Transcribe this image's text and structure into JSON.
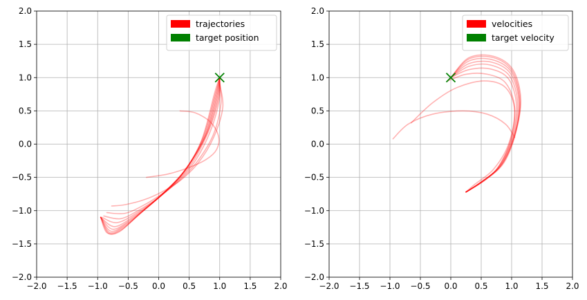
{
  "chart_data": [
    {
      "type": "line",
      "title": "",
      "xlabel": "",
      "ylabel": "",
      "xlim": [
        -2,
        2
      ],
      "ylim": [
        -2,
        2
      ],
      "xticks": [
        "−2.0",
        "−1.5",
        "−1.0",
        "−0.5",
        "0.0",
        "0.5",
        "1.0",
        "1.5",
        "2.0"
      ],
      "yticks": [
        "−2.0",
        "−1.5",
        "−1.0",
        "−0.5",
        "0.0",
        "0.5",
        "1.0",
        "1.5",
        "2.0"
      ],
      "grid": true,
      "legend_position": "top-right",
      "legend": [
        {
          "label": "trajectories",
          "color": "#ff0000"
        },
        {
          "label": "target position",
          "color": "#008000"
        }
      ],
      "series": [
        {
          "points": [
            [
              0.35,
              0.5
            ],
            [
              0.6,
              0.47
            ],
            [
              0.85,
              0.33
            ],
            [
              0.98,
              0.12
            ],
            [
              0.95,
              -0.08
            ],
            [
              0.78,
              -0.23
            ],
            [
              0.5,
              -0.35
            ],
            [
              0.15,
              -0.45
            ],
            [
              -0.2,
              -0.5
            ]
          ]
        },
        {
          "points": [
            [
              -0.77,
              -0.93
            ],
            [
              -0.55,
              -0.91
            ],
            [
              -0.25,
              -0.84
            ],
            [
              0.05,
              -0.72
            ],
            [
              0.35,
              -0.55
            ],
            [
              0.65,
              -0.28
            ],
            [
              0.9,
              0.1
            ],
            [
              1.05,
              0.55
            ],
            [
              1.0,
              0.9
            ]
          ]
        },
        {
          "points": [
            [
              -0.85,
              -1.03
            ],
            [
              -0.55,
              -1.04
            ],
            [
              -0.25,
              -0.92
            ],
            [
              0.05,
              -0.75
            ],
            [
              0.35,
              -0.54
            ],
            [
              0.65,
              -0.24
            ],
            [
              0.9,
              0.15
            ],
            [
              1.02,
              0.6
            ],
            [
              1.0,
              0.95
            ]
          ]
        },
        {
          "points": [
            [
              -0.9,
              -1.08
            ],
            [
              -0.62,
              -1.12
            ],
            [
              -0.3,
              -0.98
            ],
            [
              0.0,
              -0.8
            ],
            [
              0.3,
              -0.57
            ],
            [
              0.6,
              -0.25
            ],
            [
              0.85,
              0.2
            ],
            [
              0.99,
              0.65
            ],
            [
              1.0,
              0.98
            ]
          ]
        },
        {
          "points": [
            [
              -0.93,
              -1.1
            ],
            [
              -0.68,
              -1.18
            ],
            [
              -0.35,
              -1.03
            ],
            [
              -0.05,
              -0.84
            ],
            [
              0.25,
              -0.6
            ],
            [
              0.55,
              -0.28
            ],
            [
              0.82,
              0.2
            ],
            [
              0.98,
              0.68
            ],
            [
              1.0,
              1.0
            ]
          ]
        },
        {
          "points": [
            [
              -0.95,
              -1.1
            ],
            [
              -0.72,
              -1.24
            ],
            [
              -0.4,
              -1.08
            ],
            [
              -0.1,
              -0.88
            ],
            [
              0.2,
              -0.64
            ],
            [
              0.5,
              -0.31
            ],
            [
              0.8,
              0.18
            ],
            [
              0.97,
              0.7
            ],
            [
              1.0,
              1.0
            ]
          ]
        },
        {
          "points": [
            [
              -0.95,
              -1.1
            ],
            [
              -0.75,
              -1.28
            ],
            [
              -0.45,
              -1.13
            ],
            [
              -0.15,
              -0.92
            ],
            [
              0.15,
              -0.68
            ],
            [
              0.48,
              -0.34
            ],
            [
              0.78,
              0.15
            ],
            [
              0.96,
              0.72
            ],
            [
              1.0,
              1.0
            ]
          ]
        },
        {
          "points": [
            [
              -0.95,
              -1.1
            ],
            [
              -0.78,
              -1.31
            ],
            [
              -0.5,
              -1.18
            ],
            [
              -0.2,
              -0.96
            ],
            [
              0.1,
              -0.72
            ],
            [
              0.45,
              -0.37
            ],
            [
              0.76,
              0.12
            ],
            [
              0.95,
              0.73
            ],
            [
              1.0,
              1.0
            ]
          ]
        },
        {
          "points": [
            [
              -0.95,
              -1.1
            ],
            [
              -0.8,
              -1.33
            ],
            [
              -0.55,
              -1.23
            ],
            [
              -0.25,
              -1.0
            ],
            [
              0.05,
              -0.76
            ],
            [
              0.42,
              -0.4
            ],
            [
              0.74,
              0.1
            ],
            [
              0.94,
              0.75
            ],
            [
              1.0,
              1.0
            ]
          ]
        },
        {
          "points": [
            [
              -0.95,
              -1.1
            ],
            [
              -0.82,
              -1.34
            ],
            [
              -0.6,
              -1.28
            ],
            [
              -0.3,
              -1.04
            ],
            [
              0.0,
              -0.8
            ],
            [
              0.4,
              -0.43
            ],
            [
              0.72,
              0.08
            ],
            [
              0.93,
              0.76
            ],
            [
              1.0,
              1.0
            ]
          ]
        },
        {
          "points": [
            [
              -0.95,
              -1.1
            ],
            [
              -0.85,
              -1.33
            ],
            [
              -0.65,
              -1.32
            ],
            [
              -0.35,
              -1.08
            ],
            [
              -0.05,
              -0.84
            ],
            [
              0.38,
              -0.46
            ],
            [
              0.7,
              0.05
            ],
            [
              0.92,
              0.78
            ],
            [
              1.0,
              1.0
            ]
          ]
        }
      ],
      "target": {
        "x": 1.0,
        "y": 1.0,
        "marker": "x",
        "color": "#008000"
      }
    },
    {
      "type": "line",
      "title": "",
      "xlabel": "",
      "ylabel": "",
      "xlim": [
        -2,
        2
      ],
      "ylim": [
        -2,
        2
      ],
      "xticks": [
        "−2.0",
        "−1.5",
        "−1.0",
        "−0.5",
        "0.0",
        "0.5",
        "1.0",
        "1.5",
        "2.0"
      ],
      "yticks": [
        "−2.0",
        "−1.5",
        "−1.0",
        "−0.5",
        "0.0",
        "0.5",
        "1.0",
        "1.5",
        "2.0"
      ],
      "grid": true,
      "legend_position": "top-right",
      "legend": [
        {
          "label": "velocities",
          "color": "#ff0000"
        },
        {
          "label": "target velocity",
          "color": "#008000"
        }
      ],
      "series": [
        {
          "points": [
            [
              -0.95,
              0.08
            ],
            [
              -0.7,
              0.3
            ],
            [
              -0.3,
              0.45
            ],
            [
              0.2,
              0.5
            ],
            [
              0.6,
              0.45
            ],
            [
              0.9,
              0.3
            ],
            [
              1.05,
              0.1
            ]
          ]
        },
        {
          "points": [
            [
              -0.65,
              0.32
            ],
            [
              -0.3,
              0.62
            ],
            [
              0.1,
              0.85
            ],
            [
              0.55,
              0.95
            ],
            [
              0.9,
              0.85
            ],
            [
              1.05,
              0.5
            ],
            [
              0.95,
              0.0
            ],
            [
              0.7,
              -0.38
            ],
            [
              0.4,
              -0.6
            ],
            [
              0.25,
              -0.72
            ]
          ]
        },
        {
          "points": [
            [
              -0.05,
              0.95
            ],
            [
              0.25,
              1.05
            ],
            [
              0.6,
              1.05
            ],
            [
              0.9,
              0.92
            ],
            [
              1.05,
              0.55
            ],
            [
              0.98,
              0.05
            ],
            [
              0.75,
              -0.38
            ],
            [
              0.45,
              -0.6
            ],
            [
              0.25,
              -0.72
            ]
          ]
        },
        {
          "points": [
            [
              0.0,
              1.0
            ],
            [
              0.3,
              1.12
            ],
            [
              0.65,
              1.13
            ],
            [
              0.95,
              0.98
            ],
            [
              1.08,
              0.58
            ],
            [
              1.0,
              0.08
            ],
            [
              0.78,
              -0.35
            ],
            [
              0.48,
              -0.58
            ],
            [
              0.25,
              -0.72
            ]
          ]
        },
        {
          "points": [
            [
              0.0,
              1.0
            ],
            [
              0.3,
              1.17
            ],
            [
              0.65,
              1.19
            ],
            [
              0.97,
              1.02
            ],
            [
              1.1,
              0.6
            ],
            [
              1.02,
              0.1
            ],
            [
              0.8,
              -0.33
            ],
            [
              0.5,
              -0.57
            ],
            [
              0.25,
              -0.72
            ]
          ]
        },
        {
          "points": [
            [
              0.0,
              1.0
            ],
            [
              0.3,
              1.21
            ],
            [
              0.68,
              1.23
            ],
            [
              0.99,
              1.05
            ],
            [
              1.12,
              0.62
            ],
            [
              1.04,
              0.12
            ],
            [
              0.82,
              -0.32
            ],
            [
              0.52,
              -0.56
            ],
            [
              0.25,
              -0.72
            ]
          ]
        },
        {
          "points": [
            [
              0.0,
              1.0
            ],
            [
              0.3,
              1.25
            ],
            [
              0.68,
              1.27
            ],
            [
              1.0,
              1.08
            ],
            [
              1.13,
              0.64
            ],
            [
              1.05,
              0.14
            ],
            [
              0.84,
              -0.3
            ],
            [
              0.54,
              -0.55
            ],
            [
              0.25,
              -0.72
            ]
          ]
        },
        {
          "points": [
            [
              0.0,
              1.0
            ],
            [
              0.3,
              1.28
            ],
            [
              0.7,
              1.3
            ],
            [
              1.01,
              1.1
            ],
            [
              1.14,
              0.66
            ],
            [
              1.06,
              0.16
            ],
            [
              0.86,
              -0.28
            ],
            [
              0.56,
              -0.54
            ],
            [
              0.25,
              -0.72
            ]
          ]
        },
        {
          "points": [
            [
              0.0,
              1.0
            ],
            [
              0.3,
              1.3
            ],
            [
              0.7,
              1.32
            ],
            [
              1.02,
              1.12
            ],
            [
              1.15,
              0.68
            ],
            [
              1.07,
              0.18
            ],
            [
              0.88,
              -0.27
            ],
            [
              0.58,
              -0.53
            ],
            [
              0.25,
              -0.72
            ]
          ]
        }
      ],
      "target": {
        "x": 0.0,
        "y": 1.0,
        "marker": "x",
        "color": "#008000"
      }
    }
  ]
}
